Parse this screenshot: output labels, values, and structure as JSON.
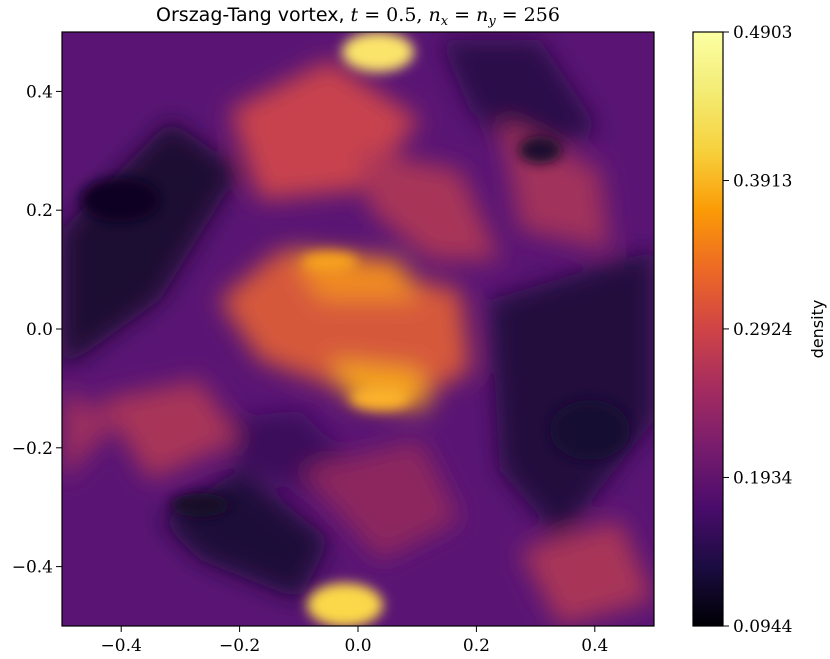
{
  "chart_data": {
    "type": "heatmap",
    "title": {
      "prefix": "Orszag-Tang vortex, ",
      "t_var": "t",
      "t_eq": " = 0.5, ",
      "nx_var": "n",
      "nx_sub": "x",
      "eq1": " = ",
      "ny_var": "n",
      "ny_sub": "y",
      "eq2": " = 256"
    },
    "xlim": [
      -0.5,
      0.5
    ],
    "ylim": [
      -0.5,
      0.5
    ],
    "xticks": [
      -0.4,
      -0.2,
      0.0,
      0.2,
      0.4
    ],
    "xtick_labels": [
      "−0.4",
      "−0.2",
      "0.0",
      "0.2",
      "0.4"
    ],
    "yticks": [
      -0.4,
      -0.2,
      0.0,
      0.2,
      0.4
    ],
    "ytick_labels": [
      "−0.4",
      "−0.2",
      "0.0",
      "0.2",
      "0.4"
    ],
    "colormap": "inferno",
    "colorbar": {
      "label": "density",
      "vmin": 0.0944,
      "vmax": 0.4903,
      "ticks": [
        0.0944,
        0.1934,
        0.2924,
        0.3913,
        0.4903
      ],
      "tick_labels": [
        "0.0944",
        "0.1934",
        "0.2924",
        "0.3913",
        "0.4903"
      ]
    },
    "grid": false
  }
}
